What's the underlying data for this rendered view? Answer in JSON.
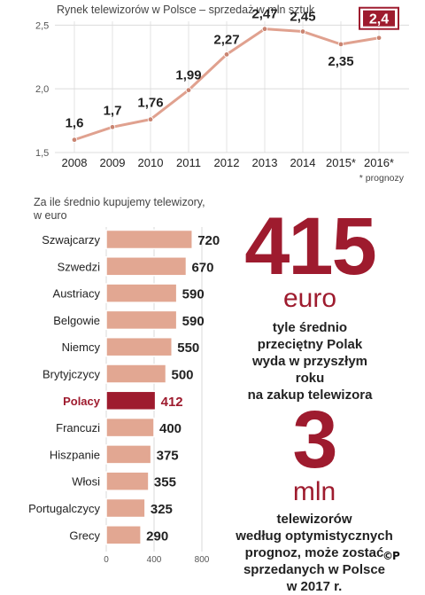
{
  "chart_data": [
    {
      "type": "line",
      "title": "Rynek telewizorów w Polsce – sprzedaż w mln sztuk",
      "x": [
        "2008",
        "2009",
        "2010",
        "2011",
        "2012",
        "2013",
        "2014",
        "2015*",
        "2016*"
      ],
      "values": [
        1.6,
        1.7,
        1.76,
        1.99,
        2.27,
        2.47,
        2.45,
        2.35,
        2.4
      ],
      "value_labels": [
        "1,6",
        "1,7",
        "1,76",
        "1,99",
        "2,27",
        "2,47",
        "2,45",
        "2,35",
        "2,4"
      ],
      "highlight_index": 8,
      "yticks": [
        "1,5",
        "2,0",
        "2,5"
      ],
      "ytick_values": [
        1.5,
        2.0,
        2.5
      ],
      "ylim": [
        1.5,
        2.6
      ],
      "footnote": "* prognozy",
      "grid": true,
      "colors": {
        "line": "#e0a18f",
        "point": "#c98471",
        "highlight": "#9e1b2e"
      }
    },
    {
      "type": "bar",
      "title": "Za ile średnio kupujemy telewizory,",
      "subtitle": "w euro",
      "categories": [
        "Szwajcarzy",
        "Szwedzi",
        "Austriacy",
        "Belgowie",
        "Niemcy",
        "Brytyjczycy",
        "Polacy",
        "Francuzi",
        "Hiszpanie",
        "Włosi",
        "Portugalczycy",
        "Grecy"
      ],
      "values": [
        720,
        670,
        590,
        590,
        550,
        500,
        412,
        400,
        375,
        355,
        325,
        290
      ],
      "highlight_category": "Polacy",
      "xticks": [
        "0",
        "400",
        "800"
      ],
      "xtick_values": [
        0,
        400,
        800
      ],
      "xlim": [
        0,
        800
      ],
      "colors": {
        "bar": "#e2a792",
        "highlight": "#9e1b2e"
      }
    }
  ],
  "stat1": {
    "number": "415",
    "unit": "euro",
    "caption": [
      "tyle średnio",
      "przeciętny Polak",
      "wyda w przyszłym roku",
      "na zakup telewizora"
    ]
  },
  "stat2": {
    "number": "3",
    "unit": "mln",
    "caption": [
      "telewizorów",
      "według optymistycznych",
      "prognoz, może zostać",
      "sprzedanych w Polsce",
      "w 2017 r."
    ]
  },
  "logo": "©P"
}
